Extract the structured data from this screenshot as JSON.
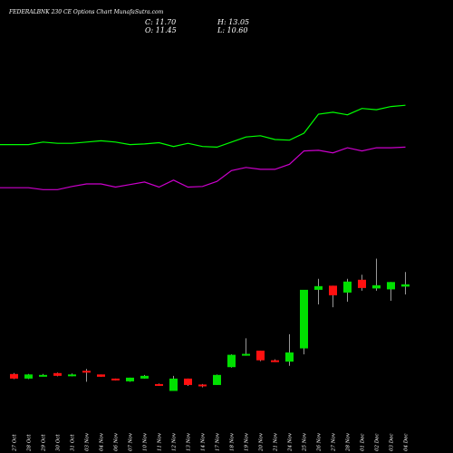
{
  "header": {
    "title": "FEDERALBNK 230  CE Options  Chart MunafaSutra.com",
    "close_label": "C: 11.70",
    "open_label": "O: 11.45",
    "high_label": "H: 13.05",
    "low_label": "L: 10.60"
  },
  "colors": {
    "background": "#000000",
    "bull": "#00e000",
    "bear": "#ff1010",
    "upper_band": "#00ff00",
    "lower_band": "#cc00cc"
  },
  "chart_data": {
    "type": "candlestick",
    "title": "FEDERALBNK 230  CE Options  Chart MunafaSutra.com",
    "categories": [
      "27 Oct",
      "28 Oct",
      "29 Oct",
      "30 Oct",
      "31 Oct",
      "03 Nov",
      "04 Nov",
      "06 Nov",
      "07 Nov",
      "10 Nov",
      "11 Nov",
      "12 Nov",
      "13 Nov",
      "14 Nov",
      "17 Nov",
      "18 Nov",
      "19 Nov",
      "20 Nov",
      "21 Nov",
      "24 Nov",
      "25 Nov",
      "26 Nov",
      "27 Nov",
      "28 Nov",
      "01 Dec",
      "02 Dec",
      "03 Dec",
      "04 Dec"
    ],
    "ohlc": [
      {
        "o": 1.9,
        "h": 2.0,
        "l": 1.35,
        "c": 1.4
      },
      {
        "o": 1.4,
        "h": 1.9,
        "l": 1.35,
        "c": 1.85
      },
      {
        "o": 1.75,
        "h": 1.9,
        "l": 1.65,
        "c": 1.8
      },
      {
        "o": 2.0,
        "h": 2.05,
        "l": 1.65,
        "c": 1.7
      },
      {
        "o": 1.75,
        "h": 1.95,
        "l": 1.65,
        "c": 1.85
      },
      {
        "o": 2.25,
        "h": 2.45,
        "l": 1.05,
        "c": 2.15
      },
      {
        "o": 1.85,
        "h": 1.85,
        "l": 1.6,
        "c": 1.6
      },
      {
        "o": 1.4,
        "h": 1.4,
        "l": 1.2,
        "c": 1.3
      },
      {
        "o": 1.1,
        "h": 1.5,
        "l": 1.05,
        "c": 1.5
      },
      {
        "o": 1.4,
        "h": 1.8,
        "l": 1.4,
        "c": 1.7
      },
      {
        "o": 0.8,
        "h": 0.85,
        "l": 0.6,
        "c": 0.75
      },
      {
        "o": 0.05,
        "h": 1.7,
        "l": 0.05,
        "c": 1.4
      },
      {
        "o": 1.4,
        "h": 1.4,
        "l": 0.6,
        "c": 0.7
      },
      {
        "o": 0.75,
        "h": 0.8,
        "l": 0.45,
        "c": 0.55
      },
      {
        "o": 0.7,
        "h": 1.85,
        "l": 0.7,
        "c": 1.8
      },
      {
        "o": 2.65,
        "h": 4.05,
        "l": 2.6,
        "c": 4.0
      },
      {
        "o": 4.0,
        "h": 5.8,
        "l": 3.9,
        "c": 4.1
      },
      {
        "o": 4.45,
        "h": 4.45,
        "l": 3.3,
        "c": 3.4
      },
      {
        "o": 3.4,
        "h": 3.5,
        "l": 3.2,
        "c": 3.2
      },
      {
        "o": 3.25,
        "h": 6.25,
        "l": 2.8,
        "c": 4.25
      },
      {
        "o": 4.7,
        "h": 11.0,
        "l": 4.05,
        "c": 11.1
      },
      {
        "o": 11.1,
        "h": 12.3,
        "l": 9.5,
        "c": 11.5
      },
      {
        "o": 11.55,
        "h": 11.55,
        "l": 9.2,
        "c": 10.5
      },
      {
        "o": 10.8,
        "h": 12.3,
        "l": 9.8,
        "c": 12.0
      },
      {
        "o": 12.2,
        "h": 12.75,
        "l": 11.0,
        "c": 11.3
      },
      {
        "o": 11.25,
        "h": 14.5,
        "l": 11.0,
        "c": 11.6
      },
      {
        "o": 11.15,
        "h": 11.95,
        "l": 9.9,
        "c": 11.95
      },
      {
        "o": 11.45,
        "h": 13.05,
        "l": 10.6,
        "c": 11.7
      }
    ],
    "upper_band": [
      27.2,
      27.2,
      27.6,
      27.4,
      27.4,
      27.6,
      27.8,
      27.6,
      27.2,
      27.3,
      27.5,
      26.9,
      27.4,
      26.9,
      26.8,
      27.6,
      28.4,
      28.6,
      28.0,
      27.9,
      29.0,
      32.0,
      32.3,
      31.9,
      32.9,
      32.7,
      33.2,
      33.4
    ],
    "lower_band": [
      20.4,
      20.4,
      20.1,
      20.1,
      20.6,
      21.0,
      21.0,
      20.5,
      20.9,
      21.3,
      20.5,
      21.6,
      20.5,
      20.6,
      21.4,
      23.1,
      23.6,
      23.3,
      23.3,
      24.1,
      26.2,
      26.3,
      25.9,
      26.7,
      26.2,
      26.7,
      26.7,
      26.8
    ]
  }
}
